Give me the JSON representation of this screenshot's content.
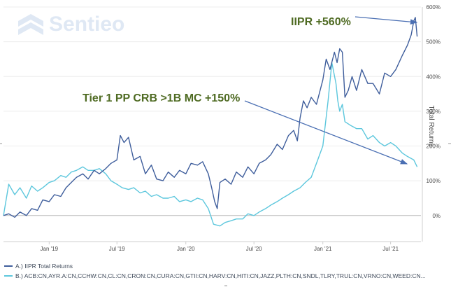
{
  "logo": {
    "text": "Sentieo",
    "icon": "sentieo-chevron-logo-icon"
  },
  "colors": {
    "series_a": "#3f5e9c",
    "series_b": "#5dc7dd",
    "annotation": "#4f6b23",
    "arrow": "#4a6fb3",
    "axis_text": "#4a4a4a"
  },
  "annotations": {
    "iipr": "IIPR +560%",
    "tier1": "Tier 1 PP CRB >1B MC +150%"
  },
  "legend": {
    "a": "A.) IIPR Total Returns",
    "b": "B.) ACB:CN,AYR.A:CN,CCHW:CN,CL:CN,CRON:CN,CURA:CN,GTII:CN,HARV:CN,HITI:CN,JAZZ,PLTH:CN,SNDL,TLRY,TRUL:CN,VRNO:CN,WEED:CN..."
  },
  "chart_data": {
    "type": "line",
    "title": "",
    "xlabel": "",
    "ylabel": "Total Returns",
    "y_tick_labels": [
      "0%",
      "100%",
      "200%",
      "300%",
      "400%",
      "500%",
      "600%"
    ],
    "y_ticks": [
      0,
      100,
      200,
      300,
      400,
      500,
      600
    ],
    "ylim": [
      -75,
      600
    ],
    "x_tick_labels": [
      "Jan '19",
      "Jul '19",
      "Jan '20",
      "Jul '20",
      "Jan '21",
      "Jul '21"
    ],
    "x_ticks": [
      "2019-01-01",
      "2019-07-01",
      "2020-01-01",
      "2020-07-01",
      "2021-01-01",
      "2021-07-01"
    ],
    "xlim": [
      "2018-09-01",
      "2021-09-20"
    ],
    "grid": true,
    "series": [
      {
        "name": "A.) IIPR Total Returns",
        "x": [
          "2018-09-01",
          "2018-09-15",
          "2018-10-01",
          "2018-10-15",
          "2018-11-01",
          "2018-11-15",
          "2018-12-01",
          "2018-12-15",
          "2019-01-01",
          "2019-01-15",
          "2019-02-01",
          "2019-02-15",
          "2019-03-01",
          "2019-03-15",
          "2019-04-01",
          "2019-04-15",
          "2019-05-01",
          "2019-05-15",
          "2019-06-01",
          "2019-06-15",
          "2019-07-01",
          "2019-07-10",
          "2019-07-20",
          "2019-08-01",
          "2019-08-15",
          "2019-09-01",
          "2019-09-15",
          "2019-10-01",
          "2019-10-15",
          "2019-11-01",
          "2019-11-15",
          "2019-12-01",
          "2019-12-15",
          "2020-01-01",
          "2020-01-15",
          "2020-02-01",
          "2020-02-15",
          "2020-03-01",
          "2020-03-10",
          "2020-03-18",
          "2020-03-25",
          "2020-04-01",
          "2020-04-15",
          "2020-05-01",
          "2020-05-15",
          "2020-06-01",
          "2020-06-15",
          "2020-07-01",
          "2020-07-15",
          "2020-08-01",
          "2020-08-15",
          "2020-09-01",
          "2020-09-15",
          "2020-10-01",
          "2020-10-15",
          "2020-10-25",
          "2020-11-01",
          "2020-11-10",
          "2020-11-20",
          "2020-12-01",
          "2020-12-15",
          "2021-01-01",
          "2021-01-10",
          "2021-01-20",
          "2021-02-01",
          "2021-02-08",
          "2021-02-15",
          "2021-02-22",
          "2021-03-01",
          "2021-03-10",
          "2021-03-20",
          "2021-04-01",
          "2021-04-15",
          "2021-05-01",
          "2021-05-15",
          "2021-06-01",
          "2021-06-15",
          "2021-07-01",
          "2021-07-15",
          "2021-08-01",
          "2021-08-15",
          "2021-08-25",
          "2021-09-01",
          "2021-09-05",
          "2021-09-10"
        ],
        "y": [
          0,
          5,
          -5,
          10,
          0,
          20,
          15,
          45,
          40,
          60,
          55,
          80,
          95,
          110,
          120,
          105,
          130,
          120,
          135,
          150,
          160,
          230,
          210,
          225,
          160,
          170,
          120,
          145,
          105,
          100,
          125,
          110,
          130,
          120,
          150,
          145,
          155,
          120,
          80,
          40,
          20,
          95,
          105,
          90,
          125,
          110,
          140,
          120,
          150,
          160,
          175,
          205,
          190,
          230,
          245,
          215,
          280,
          330,
          310,
          340,
          320,
          390,
          450,
          420,
          470,
          440,
          480,
          470,
          340,
          360,
          400,
          360,
          420,
          380,
          380,
          350,
          410,
          400,
          420,
          460,
          490,
          520,
          560,
          570,
          515
        ]
      },
      {
        "name": "B.) ACB:CN,AYR.A:CN,CCHW:CN,CL:CN,CRON:CN,CURA:CN,GTII:CN,HARV:CN,HITI:CN,JAZZ,PLTH:CN,SNDL,TLRY,TRUL:CN,VRNO:CN,WEED:CN...",
        "x": [
          "2018-09-01",
          "2018-09-15",
          "2018-10-01",
          "2018-10-15",
          "2018-11-01",
          "2018-11-15",
          "2018-12-01",
          "2018-12-15",
          "2019-01-01",
          "2019-01-15",
          "2019-02-01",
          "2019-02-15",
          "2019-03-01",
          "2019-03-15",
          "2019-04-01",
          "2019-04-15",
          "2019-05-01",
          "2019-05-15",
          "2019-06-01",
          "2019-06-15",
          "2019-07-01",
          "2019-07-15",
          "2019-08-01",
          "2019-08-15",
          "2019-09-01",
          "2019-09-15",
          "2019-10-01",
          "2019-10-15",
          "2019-11-01",
          "2019-11-15",
          "2019-12-01",
          "2019-12-15",
          "2020-01-01",
          "2020-01-15",
          "2020-02-01",
          "2020-02-15",
          "2020-03-01",
          "2020-03-15",
          "2020-04-01",
          "2020-04-15",
          "2020-05-01",
          "2020-05-15",
          "2020-06-01",
          "2020-06-15",
          "2020-07-01",
          "2020-07-15",
          "2020-08-01",
          "2020-08-15",
          "2020-09-01",
          "2020-09-15",
          "2020-10-01",
          "2020-10-15",
          "2020-11-01",
          "2020-11-15",
          "2020-12-01",
          "2020-12-15",
          "2021-01-01",
          "2021-01-15",
          "2021-01-25",
          "2021-02-05",
          "2021-02-10",
          "2021-02-15",
          "2021-02-22",
          "2021-03-01",
          "2021-03-15",
          "2021-04-01",
          "2021-04-15",
          "2021-05-01",
          "2021-05-15",
          "2021-06-01",
          "2021-06-15",
          "2021-07-01",
          "2021-07-15",
          "2021-08-01",
          "2021-08-15",
          "2021-09-01",
          "2021-09-10"
        ],
        "y": [
          0,
          90,
          60,
          80,
          50,
          85,
          70,
          80,
          95,
          100,
          115,
          110,
          125,
          130,
          140,
          130,
          130,
          135,
          120,
          100,
          90,
          80,
          75,
          80,
          65,
          70,
          55,
          60,
          50,
          50,
          55,
          40,
          45,
          40,
          50,
          45,
          20,
          -25,
          -30,
          -20,
          -15,
          -10,
          -10,
          5,
          0,
          10,
          20,
          30,
          40,
          50,
          60,
          70,
          80,
          95,
          110,
          150,
          200,
          330,
          440,
          380,
          330,
          300,
          320,
          270,
          260,
          250,
          250,
          220,
          230,
          210,
          200,
          210,
          200,
          180,
          170,
          160,
          140
        ]
      }
    ]
  }
}
